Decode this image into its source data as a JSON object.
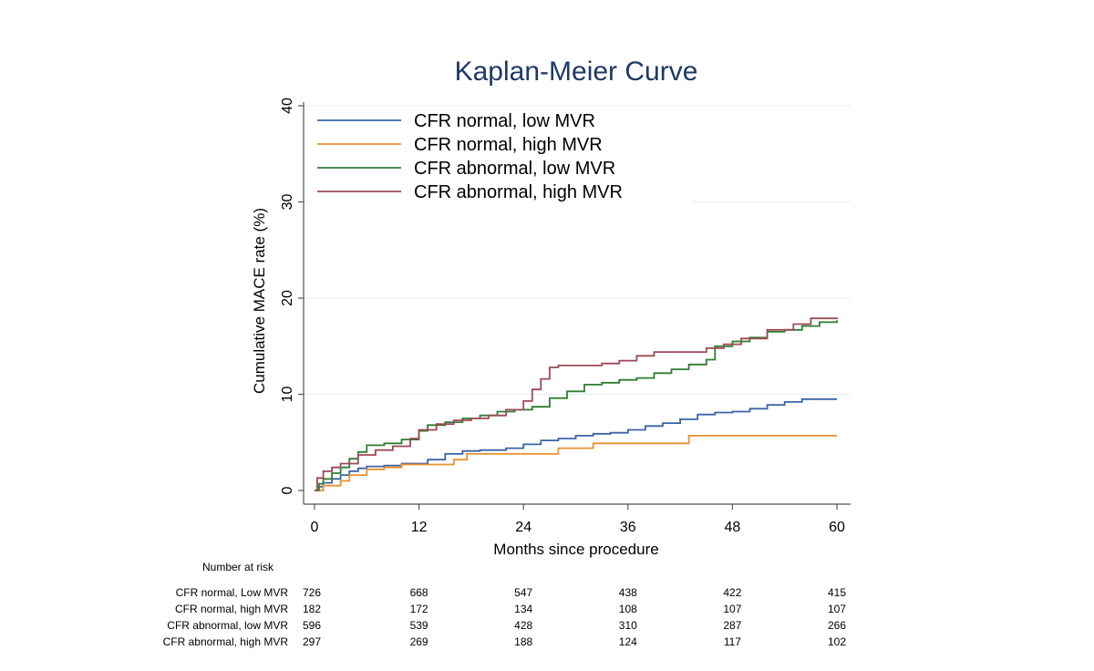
{
  "chart_data": {
    "type": "line",
    "title": "Kaplan-Meier Curve",
    "xlabel": "Months since procedure",
    "ylabel": "Cumulative MACE rate (%)",
    "xlim": [
      0,
      60
    ],
    "ylim": [
      0,
      40
    ],
    "x_ticks": [
      0,
      12,
      24,
      36,
      48,
      60
    ],
    "y_ticks": [
      0,
      10,
      20,
      30,
      40
    ],
    "grid": true,
    "legend_position": "top-left",
    "series": [
      {
        "name": "CFR normal, low MVR",
        "color": "#3a64a8",
        "points": [
          [
            0,
            0
          ],
          [
            0.5,
            0.4
          ],
          [
            1,
            0.8
          ],
          [
            2,
            1.2
          ],
          [
            3,
            1.6
          ],
          [
            4,
            2.0
          ],
          [
            5,
            2.3
          ],
          [
            6,
            2.5
          ],
          [
            8,
            2.6
          ],
          [
            10,
            2.8
          ],
          [
            13,
            3.2
          ],
          [
            15,
            3.8
          ],
          [
            17,
            4.1
          ],
          [
            19,
            4.2
          ],
          [
            22,
            4.4
          ],
          [
            24,
            4.8
          ],
          [
            26,
            5.2
          ],
          [
            28,
            5.4
          ],
          [
            30,
            5.7
          ],
          [
            32,
            5.9
          ],
          [
            34,
            6.0
          ],
          [
            36,
            6.3
          ],
          [
            38,
            6.7
          ],
          [
            40,
            7.0
          ],
          [
            42,
            7.4
          ],
          [
            44,
            7.9
          ],
          [
            46,
            8.1
          ],
          [
            48,
            8.2
          ],
          [
            50,
            8.5
          ],
          [
            52,
            8.9
          ],
          [
            54,
            9.2
          ],
          [
            56,
            9.5
          ],
          [
            60,
            9.5
          ]
        ]
      },
      {
        "name": "CFR normal, high MVR",
        "color": "#e8922e",
        "points": [
          [
            0,
            0
          ],
          [
            1,
            0.5
          ],
          [
            3,
            1.0
          ],
          [
            4,
            1.6
          ],
          [
            6,
            2.2
          ],
          [
            8,
            2.4
          ],
          [
            10,
            2.7
          ],
          [
            16,
            3.2
          ],
          [
            17.5,
            3.8
          ],
          [
            28,
            4.4
          ],
          [
            32,
            4.9
          ],
          [
            43,
            5.7
          ],
          [
            60,
            5.7
          ]
        ]
      },
      {
        "name": "CFR abnormal, low MVR",
        "color": "#2e7d32",
        "points": [
          [
            0,
            0
          ],
          [
            0.5,
            0.7
          ],
          [
            1,
            1.2
          ],
          [
            2,
            1.8
          ],
          [
            3,
            2.4
          ],
          [
            4,
            3.3
          ],
          [
            5,
            4.0
          ],
          [
            6,
            4.7
          ],
          [
            8,
            4.9
          ],
          [
            10,
            5.3
          ],
          [
            12,
            6.2
          ],
          [
            13,
            6.8
          ],
          [
            15,
            7.1
          ],
          [
            17,
            7.5
          ],
          [
            19,
            7.8
          ],
          [
            21,
            8.2
          ],
          [
            23,
            8.4
          ],
          [
            25,
            8.7
          ],
          [
            27,
            9.6
          ],
          [
            29,
            10.3
          ],
          [
            31,
            11.0
          ],
          [
            33,
            11.2
          ],
          [
            35,
            11.5
          ],
          [
            37,
            11.7
          ],
          [
            39,
            12.2
          ],
          [
            41,
            12.6
          ],
          [
            43,
            13.1
          ],
          [
            45,
            13.6
          ],
          [
            46,
            15.0
          ],
          [
            48,
            15.5
          ],
          [
            50,
            15.9
          ],
          [
            52,
            16.5
          ],
          [
            54,
            16.7
          ],
          [
            56,
            17.1
          ],
          [
            58,
            17.5
          ],
          [
            60,
            17.7
          ]
        ]
      },
      {
        "name": "CFR abnormal, high MVR",
        "color": "#9c4a56",
        "points": [
          [
            0,
            0
          ],
          [
            0.3,
            1.3
          ],
          [
            1,
            2.0
          ],
          [
            2,
            2.4
          ],
          [
            3,
            2.8
          ],
          [
            5,
            3.7
          ],
          [
            7,
            4.2
          ],
          [
            9,
            4.6
          ],
          [
            11,
            5.4
          ],
          [
            12,
            6.3
          ],
          [
            14,
            6.9
          ],
          [
            16,
            7.3
          ],
          [
            18,
            7.5
          ],
          [
            20,
            7.8
          ],
          [
            22,
            8.4
          ],
          [
            24,
            9.3
          ],
          [
            25,
            10.5
          ],
          [
            26,
            11.6
          ],
          [
            27,
            12.8
          ],
          [
            28,
            13.0
          ],
          [
            33,
            13.2
          ],
          [
            35,
            13.5
          ],
          [
            37,
            14.0
          ],
          [
            39,
            14.4
          ],
          [
            45,
            14.8
          ],
          [
            47,
            15.2
          ],
          [
            49,
            15.8
          ],
          [
            52,
            16.7
          ],
          [
            55,
            17.3
          ],
          [
            57,
            17.9
          ],
          [
            60,
            18.0
          ]
        ]
      }
    ],
    "risk_table": {
      "header": "Number at risk",
      "times": [
        0,
        12,
        24,
        36,
        48,
        60
      ],
      "rows": [
        {
          "label": "CFR normal, Low MVR",
          "values": [
            "726",
            "668",
            "547",
            "438",
            "422",
            "415"
          ]
        },
        {
          "label": "CFR normal, high MVR",
          "values": [
            "182",
            "172",
            "134",
            "108",
            "107",
            "107"
          ]
        },
        {
          "label": "CFR abnormal, low MVR",
          "values": [
            "596",
            "539",
            "428",
            "310",
            "287",
            "266"
          ]
        },
        {
          "label": "CFR abnormal, high MVR",
          "values": [
            "297",
            "269",
            "188",
            "124",
            "117",
            "102"
          ]
        }
      ]
    }
  }
}
